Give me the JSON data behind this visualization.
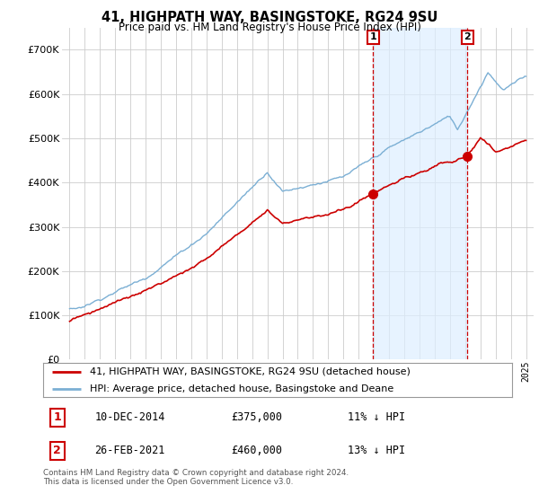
{
  "title1": "41, HIGHPATH WAY, BASINGSTOKE, RG24 9SU",
  "title2": "Price paid vs. HM Land Registry's House Price Index (HPI)",
  "legend_line1": "41, HIGHPATH WAY, BASINGSTOKE, RG24 9SU (detached house)",
  "legend_line2": "HPI: Average price, detached house, Basingstoke and Deane",
  "annotation1": {
    "label": "1",
    "date": "10-DEC-2014",
    "price": "£375,000",
    "hpi": "11% ↓ HPI",
    "x_year": 2014.94
  },
  "annotation2": {
    "label": "2",
    "date": "26-FEB-2021",
    "price": "£460,000",
    "hpi": "13% ↓ HPI",
    "x_year": 2021.15
  },
  "footer": "Contains HM Land Registry data © Crown copyright and database right 2024.\nThis data is licensed under the Open Government Licence v3.0.",
  "hpi_color": "#7bafd4",
  "hpi_fill_color": "#ddeeff",
  "price_color": "#cc0000",
  "annotation_color": "#cc0000",
  "background_color": "#ffffff",
  "grid_color": "#cccccc",
  "ylim": [
    0,
    750000
  ],
  "yticks": [
    0,
    100000,
    200000,
    300000,
    400000,
    500000,
    600000,
    700000
  ],
  "xlim_start": 1994.5,
  "xlim_end": 2025.5,
  "sale1_price": 375000,
  "sale2_price": 460000
}
